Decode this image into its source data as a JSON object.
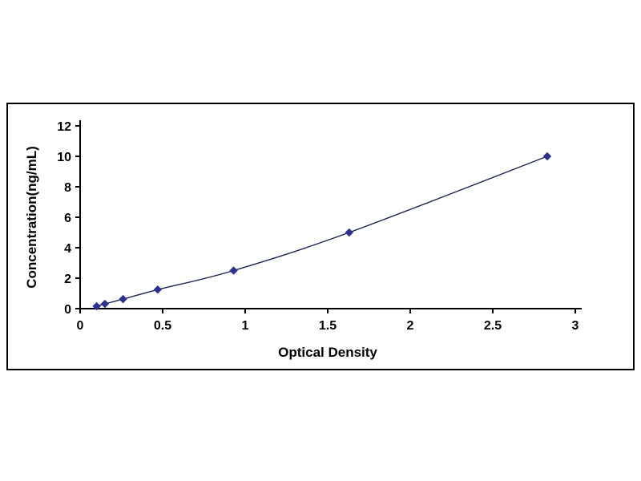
{
  "page": {
    "background_color": "#ffffff"
  },
  "chart_data": {
    "type": "line",
    "title": "",
    "xlabel": "Optical Density",
    "ylabel": "Concentration(ng/mL)",
    "x": [
      0.1,
      0.15,
      0.26,
      0.47,
      0.93,
      1.63,
      2.83
    ],
    "y": [
      0.156,
      0.313,
      0.625,
      1.25,
      2.5,
      5,
      10
    ],
    "xlim": [
      0,
      3
    ],
    "ylim": [
      0,
      12
    ],
    "x_ticks": [
      0,
      0.5,
      1,
      1.5,
      2,
      2.5,
      3
    ],
    "x_tick_labels": [
      "0",
      "0.5",
      "1",
      "1.5",
      "2",
      "2.5",
      "3"
    ],
    "y_ticks": [
      0,
      2,
      4,
      6,
      8,
      10,
      12
    ],
    "y_tick_labels": [
      "0",
      "2",
      "4",
      "6",
      "8",
      "10",
      "12"
    ],
    "grid": false,
    "legend": "none",
    "marker": "diamond",
    "line_color": "#1a2352",
    "marker_color": "#2e3192",
    "axis_color": "#000000",
    "frame_color": "#000000"
  }
}
